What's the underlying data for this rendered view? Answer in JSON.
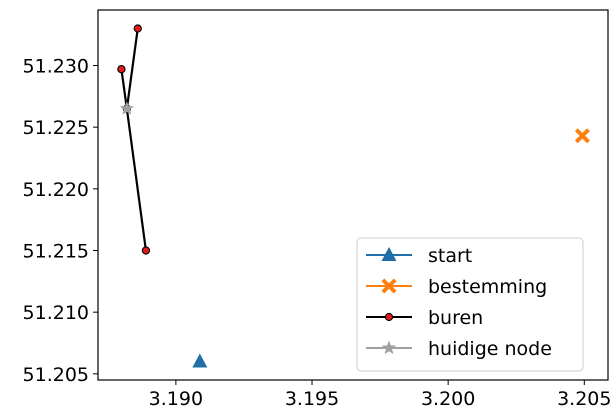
{
  "chart_data": {
    "type": "scatter",
    "title": "",
    "xlabel": "",
    "ylabel": "",
    "xlim": [
      3.18714,
      3.20587
    ],
    "ylim": [
      51.2045,
      51.2345
    ],
    "xticks": [
      3.19,
      3.195,
      3.2,
      3.205
    ],
    "xtick_labels": [
      "3.190",
      "3.195",
      "3.200",
      "3.205"
    ],
    "yticks": [
      51.205,
      51.21,
      51.215,
      51.22,
      51.225,
      51.23
    ],
    "ytick_labels": [
      "51.205",
      "51.210",
      "51.215",
      "51.220",
      "51.225",
      "51.230"
    ],
    "grid": false,
    "legend_position": "lower-right",
    "series": [
      {
        "name": "start",
        "color": "#1f6fa8",
        "marker": "triangle-up",
        "points": [
          [
            3.19088,
            51.206
          ]
        ]
      },
      {
        "name": "bestemming",
        "color": "#ff7f0e",
        "marker": "x-filled",
        "points": [
          [
            3.20493,
            51.2243
          ]
        ]
      },
      {
        "name": "buren",
        "color": "#000000",
        "marker_fill": "#e41a1c",
        "marker": "circle",
        "points": [
          [
            3.188,
            51.2297
          ],
          [
            3.1886,
            51.233
          ],
          [
            3.1882,
            51.2265
          ],
          [
            3.1889,
            51.215
          ]
        ],
        "segments": [
          [
            0,
            2
          ],
          [
            1,
            2
          ],
          [
            2,
            3
          ]
        ]
      },
      {
        "name": "huidige node",
        "color": "#a0a0a0",
        "marker": "star",
        "points": [
          [
            3.1882,
            51.2265
          ]
        ]
      }
    ]
  }
}
